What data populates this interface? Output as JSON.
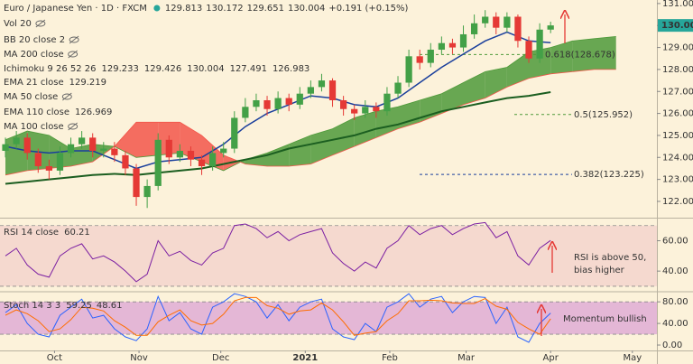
{
  "chart_data": [
    {
      "type": "candlestick",
      "title": "Euro / Japanese Yen · 1D · FXCM",
      "quote": [
        "129.813",
        "130.172",
        "129.651",
        "130.004",
        "+0.191 (+0.15%)"
      ],
      "quote_color": "#26a69a",
      "indicators": [
        {
          "name": "Vol 20",
          "hidden": true
        },
        {
          "name": "BB 20 close 2",
          "hidden": true
        },
        {
          "name": "MA 200 close",
          "hidden": true
        },
        {
          "name": "Ichimoku 9 26 52 26",
          "readings": [
            {
              "text": "129.233",
              "color": "#c2185b"
            },
            {
              "text": "129.426",
              "color": "#1565c0"
            },
            {
              "text": "130.004",
              "color": "#2e7d32"
            },
            {
              "text": "127.491",
              "color": "#2e7d32"
            },
            {
              "text": "126.983",
              "color": "#c62828"
            }
          ]
        },
        {
          "name": "EMA 21 close",
          "readings": [
            {
              "text": "129.219",
              "color": "#1a237e"
            }
          ]
        },
        {
          "name": "MA 50 close",
          "hidden": true
        },
        {
          "name": "EMA 110 close",
          "readings": [
            {
              "text": "126.969",
              "color": "#1b5e20"
            }
          ]
        },
        {
          "name": "MA 100 close",
          "hidden": true
        }
      ],
      "x": [
        -8,
        -4,
        0,
        4,
        8,
        12,
        16,
        20,
        24,
        28,
        32,
        36,
        40,
        44,
        48,
        52,
        56,
        60,
        64,
        68,
        72,
        76,
        80,
        84,
        88,
        92,
        96,
        100,
        104,
        108,
        112,
        116,
        120,
        124,
        128,
        132,
        136,
        140,
        144,
        148,
        152,
        156,
        160,
        164,
        168,
        172,
        176,
        180,
        184,
        188,
        192
      ],
      "open": [
        124.3,
        124.6,
        124.9,
        124.2,
        123.6,
        123.4,
        124.2,
        124.6,
        124.9,
        124.3,
        124.4,
        124.1,
        123.5,
        122.2,
        122.7,
        124.8,
        124.0,
        124.3,
        123.9,
        123.6,
        124.2,
        124.4,
        125.8,
        126.3,
        126.6,
        126.2,
        126.7,
        126.4,
        126.9,
        127.2,
        127.5,
        126.6,
        126.2,
        126.0,
        126.3,
        126.1,
        126.9,
        127.4,
        128.6,
        128.3,
        128.9,
        129.2,
        129.0,
        129.6,
        130.1,
        130.4,
        129.9,
        130.4,
        129.3,
        128.5,
        129.813
      ],
      "high": [
        124.9,
        125.2,
        125.1,
        124.4,
        123.9,
        124.5,
        124.9,
        125.2,
        125.1,
        124.7,
        124.7,
        124.3,
        123.7,
        123.0,
        125.1,
        125.0,
        124.6,
        124.5,
        124.1,
        124.5,
        124.7,
        126.1,
        126.7,
        126.9,
        126.8,
        127.0,
        126.9,
        127.2,
        127.5,
        127.8,
        127.6,
        126.8,
        126.4,
        126.6,
        126.5,
        127.2,
        127.7,
        128.9,
        128.9,
        129.2,
        129.5,
        129.4,
        130.0,
        130.5,
        130.7,
        130.6,
        130.6,
        130.5,
        129.5,
        130.1,
        130.172
      ],
      "low": [
        124.0,
        124.4,
        123.9,
        123.3,
        123.0,
        123.2,
        124.0,
        124.4,
        124.0,
        124.0,
        123.8,
        123.2,
        121.8,
        121.7,
        122.5,
        123.7,
        123.8,
        123.6,
        123.2,
        123.4,
        124.0,
        124.2,
        125.6,
        126.1,
        125.9,
        126.0,
        126.1,
        126.2,
        126.7,
        127.0,
        126.3,
        125.9,
        125.7,
        125.8,
        125.8,
        125.9,
        126.7,
        127.2,
        128.0,
        128.1,
        128.7,
        128.7,
        128.8,
        129.4,
        129.9,
        129.6,
        129.7,
        129.0,
        128.3,
        128.3,
        129.651
      ],
      "close": [
        124.6,
        124.9,
        124.2,
        123.6,
        123.4,
        124.2,
        124.6,
        124.9,
        124.3,
        124.4,
        124.1,
        123.5,
        122.2,
        122.7,
        124.8,
        124.0,
        124.3,
        123.9,
        123.6,
        124.2,
        124.4,
        125.8,
        126.3,
        126.6,
        126.2,
        126.7,
        126.4,
        126.9,
        127.2,
        127.5,
        126.6,
        126.2,
        126.0,
        126.3,
        126.1,
        126.9,
        127.4,
        128.6,
        128.3,
        128.9,
        129.2,
        129.0,
        129.6,
        130.1,
        130.4,
        129.9,
        130.4,
        129.3,
        128.5,
        129.813,
        130.004
      ],
      "up_color": "#43a047",
      "down_color": "#e53935",
      "lines": [
        {
          "color": "#1a3f9c",
          "width": 1.5,
          "x": [
            -8,
            0,
            8,
            16,
            24,
            32,
            40,
            48,
            56,
            64,
            72,
            80,
            88,
            96,
            104,
            112,
            120,
            128,
            136,
            144,
            152,
            160,
            168,
            176,
            184,
            192
          ],
          "values": [
            124.5,
            124.3,
            124.2,
            124.3,
            124.3,
            123.9,
            123.5,
            123.8,
            123.9,
            124.0,
            124.6,
            125.4,
            126.0,
            126.4,
            126.8,
            126.7,
            126.4,
            126.3,
            126.7,
            127.4,
            128.1,
            128.7,
            129.3,
            129.7,
            129.3,
            129.219
          ]
        },
        {
          "color": "#1b5e20",
          "width": 2,
          "x": [
            -8,
            0,
            8,
            16,
            24,
            32,
            40,
            48,
            56,
            64,
            72,
            80,
            88,
            96,
            104,
            112,
            120,
            128,
            136,
            144,
            152,
            160,
            168,
            176,
            184,
            192
          ],
          "values": [
            122.8,
            122.9,
            123.0,
            123.1,
            123.2,
            123.25,
            123.2,
            123.3,
            123.4,
            123.5,
            123.7,
            123.9,
            124.1,
            124.4,
            124.6,
            124.8,
            125.0,
            125.3,
            125.5,
            125.8,
            126.1,
            126.3,
            126.5,
            126.7,
            126.8,
            126.969
          ]
        }
      ],
      "cloud": {
        "x": [
          -8,
          0,
          8,
          16,
          24,
          32,
          40,
          48,
          56,
          64,
          72,
          80,
          88,
          96,
          104,
          112,
          120,
          128,
          136,
          144,
          152,
          160,
          168,
          176,
          184,
          192,
          200,
          208,
          216
        ],
        "span_a": [
          124.8,
          125.2,
          125.0,
          124.4,
          124.6,
          124.5,
          124.0,
          124.1,
          124.2,
          123.8,
          123.4,
          123.9,
          124.2,
          124.6,
          125.0,
          125.3,
          125.8,
          126.1,
          126.3,
          126.6,
          126.9,
          127.4,
          127.9,
          128.1,
          128.8,
          129.0,
          129.3,
          129.4,
          129.5
        ],
        "span_b": [
          123.2,
          123.4,
          123.5,
          123.6,
          123.8,
          124.5,
          125.6,
          125.6,
          125.6,
          125.0,
          124.1,
          123.7,
          123.6,
          123.6,
          123.7,
          124.1,
          124.5,
          124.9,
          125.3,
          125.6,
          126.0,
          126.4,
          126.7,
          127.2,
          127.6,
          127.8,
          127.9,
          128.0,
          128.0
        ],
        "up_color": "#4e9a3a",
        "down_color": "#f2564a"
      },
      "fib": [
        {
          "value": 128.678,
          "label": "0.618(128.678)",
          "color": "#4e9a3a"
        },
        {
          "value": 125.952,
          "label": "0.5(125.952)",
          "color": "#4e9a3a"
        },
        {
          "value": 123.225,
          "label": "0.382(123.225)",
          "color": "#1a3f9c"
        }
      ],
      "last_price": {
        "value": 130.004,
        "label": "130.004",
        "color": "#26a69a"
      },
      "xlim": [
        -10,
        231
      ],
      "ylim": [
        121.3,
        131.16
      ],
      "yticks": [
        {
          "value": 122,
          "label": "122.000"
        },
        {
          "value": 123,
          "label": "123.000"
        },
        {
          "value": 124,
          "label": "124.000"
        },
        {
          "value": 125,
          "label": "125.000"
        },
        {
          "value": 126,
          "label": "126.000"
        },
        {
          "value": 127,
          "label": "127.000"
        },
        {
          "value": 128,
          "label": "128.000"
        },
        {
          "value": 129,
          "label": "129.000"
        },
        {
          "value": 130,
          "label": "130.000"
        },
        {
          "value": 131,
          "label": "131.000"
        }
      ]
    },
    {
      "type": "line",
      "title": "RSI 14 close",
      "x": [
        -8,
        -4,
        0,
        4,
        8,
        12,
        16,
        20,
        24,
        28,
        32,
        36,
        40,
        44,
        48,
        52,
        56,
        60,
        64,
        68,
        72,
        76,
        80,
        84,
        88,
        92,
        96,
        100,
        104,
        108,
        112,
        116,
        120,
        124,
        128,
        132,
        136,
        140,
        144,
        148,
        152,
        156,
        160,
        164,
        168,
        172,
        176,
        180,
        184,
        188,
        192
      ],
      "values": [
        50,
        55,
        44,
        38,
        36,
        50,
        55,
        58,
        48,
        50,
        46,
        40,
        33,
        38,
        60,
        50,
        53,
        47,
        44,
        52,
        55,
        70,
        71,
        68,
        62,
        66,
        60,
        64,
        66,
        68,
        52,
        45,
        40,
        46,
        42,
        55,
        60,
        70,
        64,
        68,
        70,
        64,
        68,
        71,
        72,
        62,
        66,
        50,
        44,
        55,
        60.21
      ],
      "color": "#7b1fa2",
      "band": [
        30,
        70
      ],
      "band_color": "#f5d9cf",
      "annotation": [
        "RSI is above 50,",
        "bias higher"
      ],
      "xlim": [
        -10,
        231
      ],
      "ylim": [
        27,
        74
      ],
      "yticks": [
        {
          "value": 60,
          "label": "60.00"
        },
        {
          "value": 40,
          "label": "40.00"
        }
      ]
    },
    {
      "type": "line",
      "title": "Stoch 14 3 3",
      "x": [
        -8,
        -4,
        0,
        4,
        8,
        12,
        16,
        20,
        24,
        28,
        32,
        36,
        40,
        44,
        48,
        52,
        56,
        60,
        64,
        68,
        72,
        76,
        80,
        84,
        88,
        92,
        96,
        100,
        104,
        108,
        112,
        116,
        120,
        124,
        128,
        132,
        136,
        140,
        144,
        148,
        152,
        156,
        160,
        164,
        168,
        172,
        176,
        180,
        184,
        188,
        192
      ],
      "series": [
        {
          "color": "#2962ff",
          "values": [
            60,
            75,
            40,
            20,
            15,
            55,
            70,
            85,
            50,
            55,
            30,
            15,
            8,
            30,
            90,
            45,
            60,
            30,
            20,
            70,
            80,
            95,
            90,
            80,
            50,
            75,
            45,
            70,
            80,
            85,
            30,
            15,
            10,
            40,
            25,
            70,
            80,
            95,
            70,
            85,
            90,
            60,
            80,
            90,
            88,
            40,
            70,
            15,
            5,
            40,
            59.25
          ]
        },
        {
          "color": "#ff6d00",
          "values": [
            55,
            65,
            58,
            45,
            25,
            30,
            47,
            70,
            68,
            63,
            45,
            33,
            18,
            18,
            43,
            55,
            65,
            45,
            37,
            40,
            57,
            82,
            88,
            88,
            73,
            68,
            57,
            63,
            65,
            78,
            65,
            43,
            18,
            22,
            25,
            45,
            58,
            82,
            82,
            83,
            82,
            78,
            77,
            77,
            86,
            72,
            66,
            42,
            30,
            20,
            48.61
          ]
        }
      ],
      "band": [
        20,
        80
      ],
      "band_color": "#e4b7d6",
      "annotation": "Momentum bullish",
      "xlim": [
        -10,
        231
      ],
      "ylim": [
        -10,
        97
      ],
      "yticks": [
        {
          "value": 80,
          "label": "80.00"
        },
        {
          "value": 40,
          "label": "40.00"
        },
        {
          "value": 0,
          "label": "0.00"
        }
      ],
      "xticks": [
        {
          "value": 10,
          "label": "Oct"
        },
        {
          "value": 41,
          "label": "Nov"
        },
        {
          "value": 71,
          "label": "Dec"
        },
        {
          "value": 102,
          "label": "2021"
        },
        {
          "value": 133,
          "label": "Feb"
        },
        {
          "value": 161,
          "label": "Mar"
        },
        {
          "value": 192,
          "label": "Apr"
        },
        {
          "value": 222,
          "label": "May"
        }
      ]
    }
  ]
}
